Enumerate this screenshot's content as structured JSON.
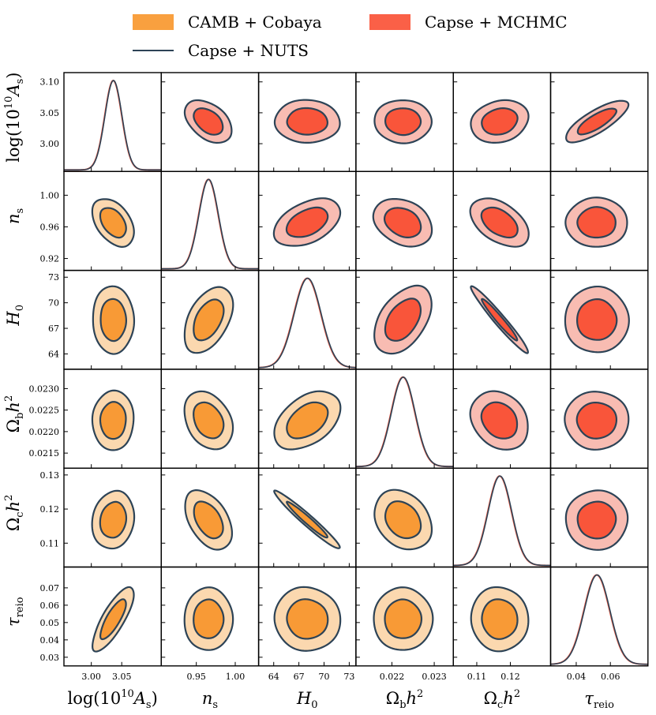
{
  "chart_data": {
    "type": "corner-plot",
    "title": "",
    "legend": [
      {
        "label": "CAMB + Cobaya",
        "color": "#F9A03F",
        "style": "filled"
      },
      {
        "label": "Capse + MCHMC",
        "color": "#FA6047",
        "style": "filled"
      },
      {
        "label": "Capse + NUTS",
        "color": "#2D4356",
        "style": "line"
      }
    ],
    "colors": {
      "lower_inner": "#F89A36",
      "lower_outer": "#FBD8AF",
      "upper_inner": "#F9553A",
      "upper_outer": "#F8BCB2",
      "nuts_line": "#2D4356",
      "mchmc_line": "#E8553E"
    },
    "parameters": [
      {
        "name": "log10As",
        "label_main": "log(10",
        "label_sup": "10",
        "label_tail": "A",
        "label_sub": "s",
        "label": "log(10^10 A_s)",
        "mean": 3.036,
        "sigma": 0.014,
        "range": [
          2.955,
          3.115
        ],
        "ticks": [
          3.0,
          3.05
        ],
        "tick_labels": [
          "3.00",
          "3.05"
        ]
      },
      {
        "name": "ns",
        "label": "n_s",
        "mean": 0.9655,
        "sigma": 0.0125,
        "range": [
          0.905,
          1.03
        ],
        "ticks": [
          0.95,
          1.0
        ],
        "tick_labels": [
          "0.95",
          "1.00"
        ],
        "yticks": [
          0.92,
          0.96,
          1.0
        ],
        "ytick_labels": [
          "0.92",
          "0.96",
          "1.00"
        ]
      },
      {
        "name": "H0",
        "label": "H_0",
        "mean": 68.0,
        "sigma": 1.6,
        "range": [
          62.2,
          73.8
        ],
        "ticks": [
          64,
          67,
          70,
          73
        ],
        "tick_labels": [
          "64",
          "67",
          "70",
          "73"
        ]
      },
      {
        "name": "Ombh2",
        "label": "Ω_b h^2",
        "mean": 0.02226,
        "sigma": 0.00028,
        "range": [
          0.02115,
          0.02345
        ],
        "ticks": [
          0.022,
          0.023
        ],
        "tick_labels": [
          "0.022",
          "0.023"
        ],
        "yticks": [
          0.0215,
          0.022,
          0.0225,
          0.023
        ],
        "ytick_labels": [
          "0.0215",
          "0.0220",
          "0.0225",
          "0.0230"
        ]
      },
      {
        "name": "Omch2",
        "label": "Ω_c h^2",
        "mean": 0.1168,
        "sigma": 0.0035,
        "range": [
          0.103,
          0.132
        ],
        "ticks": [
          0.11,
          0.12
        ],
        "tick_labels": [
          "0.11",
          "0.12"
        ],
        "yticks": [
          0.11,
          0.12,
          0.13
        ],
        "ytick_labels": [
          "0.11",
          "0.12",
          "0.13"
        ]
      },
      {
        "name": "tau",
        "label": "τ_reio",
        "mean": 0.052,
        "sigma": 0.0075,
        "range": [
          0.025,
          0.082
        ],
        "ticks": [
          0.04,
          0.06
        ],
        "tick_labels": [
          "0.04",
          "0.06"
        ],
        "yticks": [
          0.03,
          0.04,
          0.05,
          0.06,
          0.07
        ],
        "ytick_labels": [
          "0.03",
          "0.04",
          "0.05",
          "0.06",
          "0.07"
        ]
      }
    ],
    "y_tick_overrides": {
      "log10As": {
        "yticks": [
          3.0,
          3.05,
          3.1
        ],
        "ytick_labels": [
          "3.00",
          "3.05",
          "3.10"
        ]
      },
      "H0": {
        "yticks": [
          64,
          67,
          70,
          73
        ],
        "ytick_labels": [
          "64",
          "67",
          "70",
          "73"
        ]
      }
    },
    "correlations": [
      [
        1.0,
        -0.45,
        -0.05,
        0.0,
        0.15,
        0.8
      ],
      [
        -0.45,
        1.0,
        0.45,
        -0.3,
        -0.45,
        0.0
      ],
      [
        -0.05,
        0.45,
        1.0,
        0.45,
        -0.97,
        0.0
      ],
      [
        0.0,
        -0.3,
        0.45,
        1.0,
        -0.25,
        0.0
      ],
      [
        0.15,
        -0.45,
        -0.97,
        -0.25,
        1.0,
        0.0
      ],
      [
        0.8,
        0.0,
        0.0,
        0.0,
        0.0,
        1.0
      ]
    ],
    "contour_levels": [
      "68%",
      "95%"
    ]
  }
}
